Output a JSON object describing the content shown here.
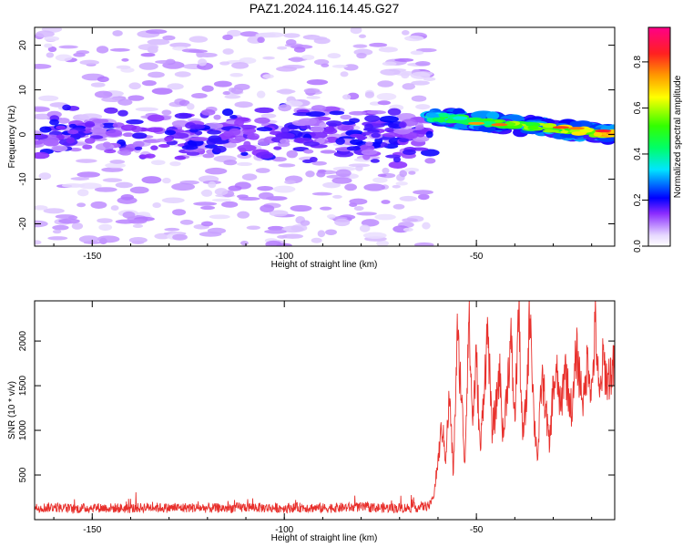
{
  "title": "PAZ1.2024.116.14.45.G27",
  "chart_data": [
    {
      "type": "heatmap",
      "xlabel": "Height of straight line (km)",
      "ylabel": "Frequency (Hz)",
      "xlim": [
        -165,
        -14
      ],
      "ylim": [
        -25,
        24
      ],
      "xticks": [
        -150,
        -100,
        -50
      ],
      "yticks": [
        -20,
        -10,
        0,
        10,
        20
      ],
      "colorbar": {
        "label": "Normalized spectral amplitude",
        "range": [
          0,
          0.95
        ],
        "ticks": [
          0.0,
          0.2,
          0.4,
          0.6,
          0.8
        ],
        "colormap": "gist_rainbow_r"
      },
      "features": [
        {
          "x_range": [
            -165,
            -62
          ],
          "center_hz": 0,
          "halfwidth_hz": 6,
          "amplitude": 0.2
        },
        {
          "x_range": [
            -62,
            -14
          ],
          "center_hz": 4,
          "end_center_hz": 0,
          "amplitude": 0.85
        }
      ]
    },
    {
      "type": "line",
      "xlabel": "Height of straight line (km)",
      "ylabel": "SNR (10 * v/v)",
      "xlim": [
        -165,
        -14
      ],
      "ylim": [
        0,
        2450
      ],
      "xticks": [
        -150,
        -100,
        -50
      ],
      "yticks": [
        500,
        1000,
        1500,
        2000
      ],
      "color": "#e8302c",
      "series": [
        {
          "x": [
            -165,
            -160,
            -155,
            -150,
            -145,
            -140,
            -135,
            -130,
            -125,
            -120,
            -115,
            -110,
            -105,
            -100,
            -95,
            -90,
            -85,
            -80,
            -75,
            -70,
            -65,
            -62,
            -61,
            -60,
            -59,
            -58,
            -57,
            -56,
            -55,
            -54,
            -53,
            -52,
            -51,
            -50,
            -49,
            -48,
            -47,
            -46,
            -45,
            -44,
            -43,
            -42,
            -41,
            -40,
            -39,
            -38,
            -37,
            -36,
            -35,
            -34,
            -33,
            -32,
            -31,
            -30,
            -29,
            -28,
            -27,
            -26,
            -25,
            -24,
            -23,
            -22,
            -21,
            -20,
            -19,
            -18,
            -17,
            -16,
            -15,
            -14
          ],
          "y": [
            130,
            140,
            120,
            135,
            130,
            125,
            140,
            130,
            135,
            130,
            128,
            140,
            132,
            130,
            138,
            128,
            135,
            140,
            132,
            130,
            138,
            160,
            300,
            650,
            1050,
            700,
            1400,
            500,
            2050,
            1500,
            600,
            2300,
            1100,
            1800,
            750,
            1500,
            2150,
            1000,
            1200,
            1700,
            900,
            1500,
            2000,
            1100,
            2380,
            900,
            1300,
            2450,
            1100,
            700,
            1600,
            1300,
            800,
            1500,
            1600,
            1200,
            1750,
            1400,
            1200,
            1900,
            1550,
            1300,
            1850,
            1400,
            2200,
            1300,
            1800,
            1550,
            1650,
            1700
          ]
        }
      ]
    }
  ]
}
